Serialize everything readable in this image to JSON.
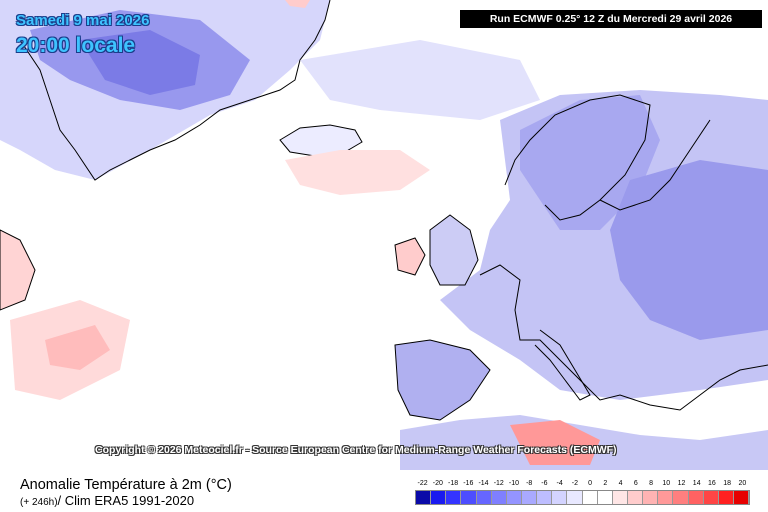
{
  "header": {
    "date_line1": "Samedi 9 mai 2026",
    "date_line2": "20:00 locale",
    "run_info": "Run ECMWF 0.25° 12 Z du Mercredi 29 avril 2026"
  },
  "copyright": "Copyright © 2026 Meteociel.fr - Source European Centre for Medium-Range Weather Forecasts (ECMWF)",
  "footer": {
    "title": "Anomalie Température à 2m (°C)",
    "sub_prefix": "(+ 246h)",
    "sub_text": "/ Clim ERA5 1991-2020"
  },
  "legend": {
    "ticks": [
      "-22",
      "-20",
      "-18",
      "-16",
      "-14",
      "-12",
      "-10",
      "-8",
      "-6",
      "-4",
      "-2",
      "0",
      "2",
      "4",
      "6",
      "8",
      "10",
      "12",
      "14",
      "16",
      "18",
      "20"
    ],
    "colors": [
      "#0a0aa8",
      "#1a1af0",
      "#3434ff",
      "#4d4dff",
      "#6666ff",
      "#7f7fff",
      "#9494ff",
      "#a9a9ff",
      "#bdbdff",
      "#d3d3ff",
      "#e8e8ff",
      "#ffffff",
      "#ffffff",
      "#ffe6e6",
      "#ffcccc",
      "#ffb3b3",
      "#ff9999",
      "#ff7f7f",
      "#ff6262",
      "#ff4545",
      "#ff2020",
      "#e60000"
    ]
  },
  "map_colors": {
    "land_outline": "#000000",
    "cold_light": "#dadaff",
    "cold_medium": "#b4b4f5",
    "cold_strong": "#8e8ef0",
    "warm_light": "#ffdcdc",
    "warm_medium": "#ffb4b4",
    "warm_strong": "#ff7070"
  }
}
